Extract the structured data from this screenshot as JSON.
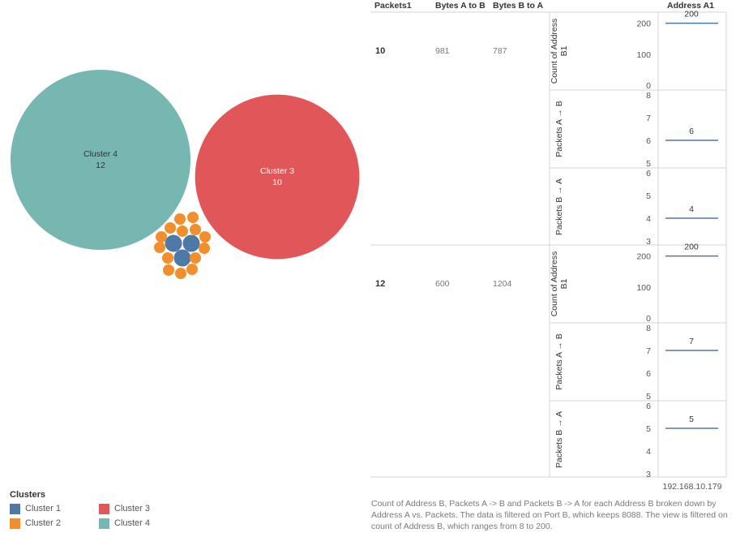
{
  "legend": {
    "title": "Clusters",
    "items": [
      {
        "label": "Cluster 1",
        "color": "#4e79a7"
      },
      {
        "label": "Cluster 2",
        "color": "#f28e2b"
      },
      {
        "label": "Cluster 3",
        "color": "#e15759"
      },
      {
        "label": "Cluster 4",
        "color": "#76b7b2"
      }
    ]
  },
  "caption": "Count of Address B, Packets A -> B and Packets B -> A for each Address B broken down by Address A vs. Packets. The data is filtered on Port B, which keeps 8088. The view is filtered on count of Address B, which ranges from 8 to 200.",
  "chart_data": [
    {
      "type": "bubble",
      "bubbles": [
        {
          "cluster": "Cluster 4",
          "value": 12,
          "label": "Cluster 4",
          "value_label": "12",
          "color": "#76b7b2"
        },
        {
          "cluster": "Cluster 3",
          "value": 10,
          "label": "Cluster 3",
          "value_label": "10",
          "color": "#e15759"
        },
        {
          "cluster": "Cluster 1",
          "color": "#4e79a7",
          "count": 3
        },
        {
          "cluster": "Cluster 2",
          "color": "#f28e2b",
          "count": 14
        }
      ]
    },
    {
      "type": "table",
      "headers": {
        "packets": "Packets1",
        "bytes_ab": "Bytes A to B",
        "bytes_ba": "Bytes B to A",
        "address": "Address A1"
      },
      "column_value": "192.168.10.179",
      "measures": [
        "Count of Address B1",
        "Packets A → B",
        "Packets B → A"
      ],
      "rows": [
        {
          "packets": "10",
          "bytes_ab": "981",
          "bytes_ba": "787",
          "panes": [
            {
              "value": 200,
              "label": "200",
              "ticks": [
                "200",
                "100",
                "0"
              ],
              "ylim": [
                0,
                220
              ]
            },
            {
              "value": 6,
              "label": "6",
              "ticks": [
                "8",
                "7",
                "6",
                "5"
              ],
              "ylim": [
                5,
                8
              ]
            },
            {
              "value": 4,
              "label": "4",
              "ticks": [
                "6",
                "5",
                "4",
                "3"
              ],
              "ylim": [
                3,
                6
              ]
            }
          ]
        },
        {
          "packets": "12",
          "bytes_ab": "600",
          "bytes_ba": "1204",
          "panes": [
            {
              "value": 200,
              "label": "200",
              "ticks": [
                "200",
                "100",
                "0"
              ],
              "ylim": [
                0,
                220
              ]
            },
            {
              "value": 7,
              "label": "7",
              "ticks": [
                "8",
                "7",
                "6",
                "5"
              ],
              "ylim": [
                5,
                8
              ]
            },
            {
              "value": 5,
              "label": "5",
              "ticks": [
                "6",
                "5",
                "4",
                "3"
              ],
              "ylim": [
                3,
                6
              ]
            }
          ]
        }
      ]
    }
  ]
}
